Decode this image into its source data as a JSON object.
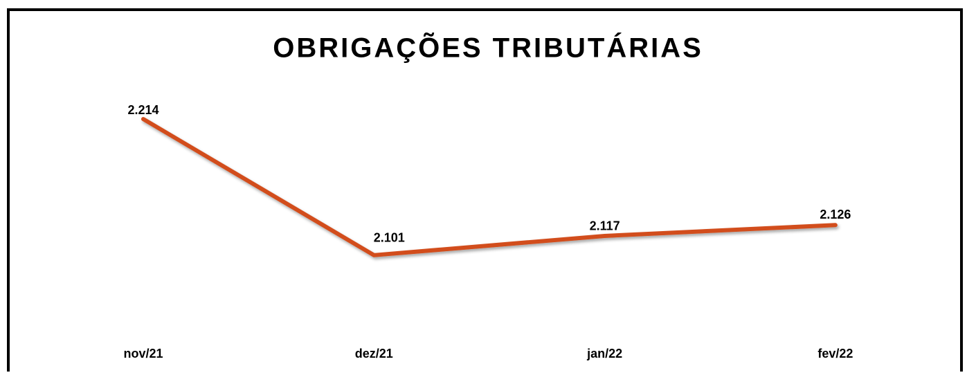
{
  "chart_data": {
    "type": "line",
    "title": "OBRIGAÇÕES TRIBUTÁRIAS",
    "categories": [
      "nov/21",
      "dez/21",
      "jan/22",
      "fev/22"
    ],
    "series": [
      {
        "name": "Obrigações Tributárias",
        "color": "#d24e1e",
        "values": [
          2214,
          2101,
          2117,
          2126
        ],
        "value_labels": [
          "2.214",
          "2.101",
          "2.117",
          "2.126"
        ]
      }
    ],
    "ylim": [
      2040,
      2260
    ]
  }
}
